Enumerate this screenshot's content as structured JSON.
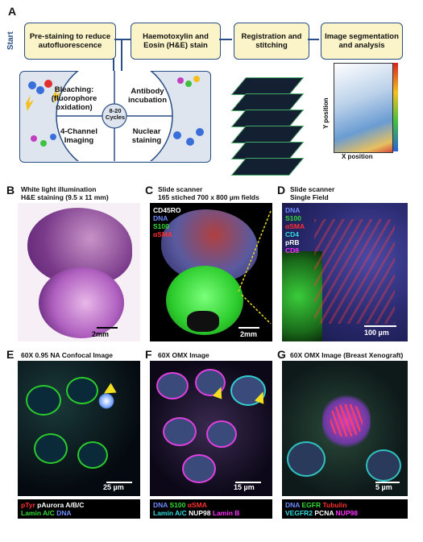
{
  "panel_a": {
    "letter": "A",
    "start_label": "Start",
    "boxes": {
      "prestain": "Pre-staining to reduce autofluorescence",
      "he": "Haemotoxylin and Eosin (H&E) stain",
      "registration": "Registration and stitching",
      "segmentation": "Image segmentation and analysis"
    },
    "cycle": {
      "bleaching": "Bleaching: (fluorophore oxidation)",
      "antibody": "Antibody incubation",
      "imaging": "4-Channel Imaging",
      "nuclear": "Nuclear staining",
      "center": "8-20 Cycles"
    },
    "plot": {
      "xlabel": "X position",
      "ylabel": "Y position"
    }
  },
  "panel_b": {
    "letter": "B",
    "caption_line1": "White light illumination",
    "caption_line2": "H&E staining (9.5 x 11 mm)",
    "scale": "2mm"
  },
  "panel_c": {
    "letter": "C",
    "caption_line1": "Slide scanner",
    "caption_line2": "165 stiched 700 x 800 µm fields",
    "channels": [
      {
        "label": "CD45RO",
        "color": "#ffffff"
      },
      {
        "label": "DNA",
        "color": "#6f8cff"
      },
      {
        "label": "S100",
        "color": "#33dd33"
      },
      {
        "label": "αSMA",
        "color": "#ff3030"
      }
    ],
    "scale": "2mm"
  },
  "panel_d": {
    "letter": "D",
    "caption_line1": "Slide scanner",
    "caption_line2": "Single Field",
    "channels": [
      {
        "label": "DNA",
        "color": "#6f8cff"
      },
      {
        "label": "S100",
        "color": "#33dd33"
      },
      {
        "label": "αSMA",
        "color": "#ff3030"
      },
      {
        "label": "CD4",
        "color": "#33dddd"
      },
      {
        "label": "pRB",
        "color": "#ffffff"
      },
      {
        "label": "CD8",
        "color": "#ff33ff"
      }
    ],
    "scale": "100 µm"
  },
  "panel_e": {
    "letter": "E",
    "caption": "60X 0.95 NA  Confocal Image",
    "scale": "25 µm",
    "legend": [
      [
        {
          "label": "pTyr",
          "color": "#ff3030"
        },
        {
          "label": "pAurora A/B/C",
          "color": "#ffffff"
        }
      ],
      [
        {
          "label": "Lamin A/C",
          "color": "#33dd33"
        },
        {
          "label": "DNA",
          "color": "#6f8cff"
        }
      ]
    ]
  },
  "panel_f": {
    "letter": "F",
    "caption": "60X OMX Image",
    "scale": "15 µm",
    "legend": [
      [
        {
          "label": "DNA",
          "color": "#6f8cff"
        },
        {
          "label": "S100",
          "color": "#33dd33"
        },
        {
          "label": "αSMA",
          "color": "#ff3030"
        }
      ],
      [
        {
          "label": "Lamin A/C",
          "color": "#33dddd"
        },
        {
          "label": "NUP98",
          "color": "#ffffff"
        },
        {
          "label": "Lamin B",
          "color": "#ff33ff"
        }
      ]
    ]
  },
  "panel_g": {
    "letter": "G",
    "caption": "60X OMX Image (Breast Xenograft)",
    "scale": "5 µm",
    "legend": [
      [
        {
          "label": "DNA",
          "color": "#6f8cff"
        },
        {
          "label": "EGFR",
          "color": "#33dd33"
        },
        {
          "label": "Tubulin",
          "color": "#ff3030"
        }
      ],
      [
        {
          "label": "VEGFR2",
          "color": "#33dddd"
        },
        {
          "label": "PCNA",
          "color": "#ffffff"
        },
        {
          "label": "NUP98",
          "color": "#ff33ff"
        }
      ]
    ]
  }
}
